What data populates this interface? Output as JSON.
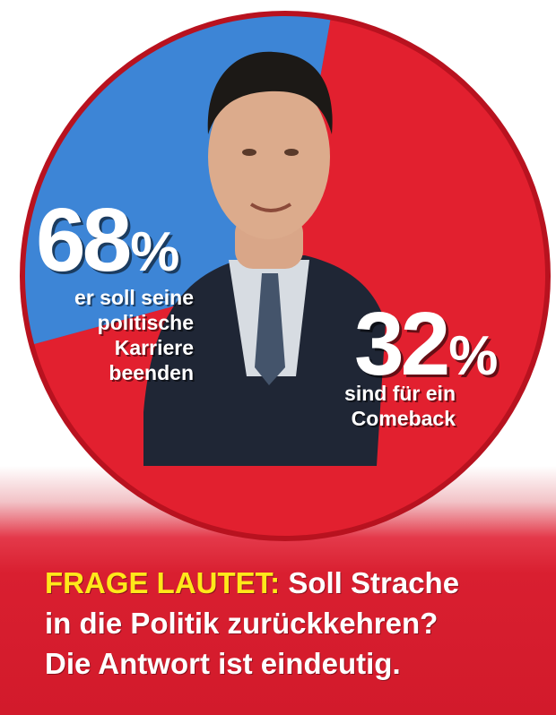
{
  "chart_data": {
    "type": "pie",
    "slices": [
      {
        "label": "er soll seine politische Karriere beenden",
        "value": 68,
        "color": "#e2202f"
      },
      {
        "label": "sind für ein Comeback",
        "value": 32,
        "color": "#3d85d6"
      }
    ]
  },
  "labels": {
    "left_number": "68",
    "left_sign": "%",
    "left_caption": [
      "er soll seine",
      "politische",
      "Karriere",
      "beenden"
    ],
    "right_number": "32",
    "right_sign": "%",
    "right_caption": [
      "sind für ein",
      "Comeback"
    ]
  },
  "question": {
    "lead": "FRAGE LAUTET:",
    "line1": " Soll Strache",
    "line2": "in die Politik zurückkehren?",
    "line3": "Die Antwort ist eindeutig."
  },
  "colors": {
    "red": "#e2202f",
    "blue": "#3d85d6",
    "yellow": "#ffe81a"
  }
}
